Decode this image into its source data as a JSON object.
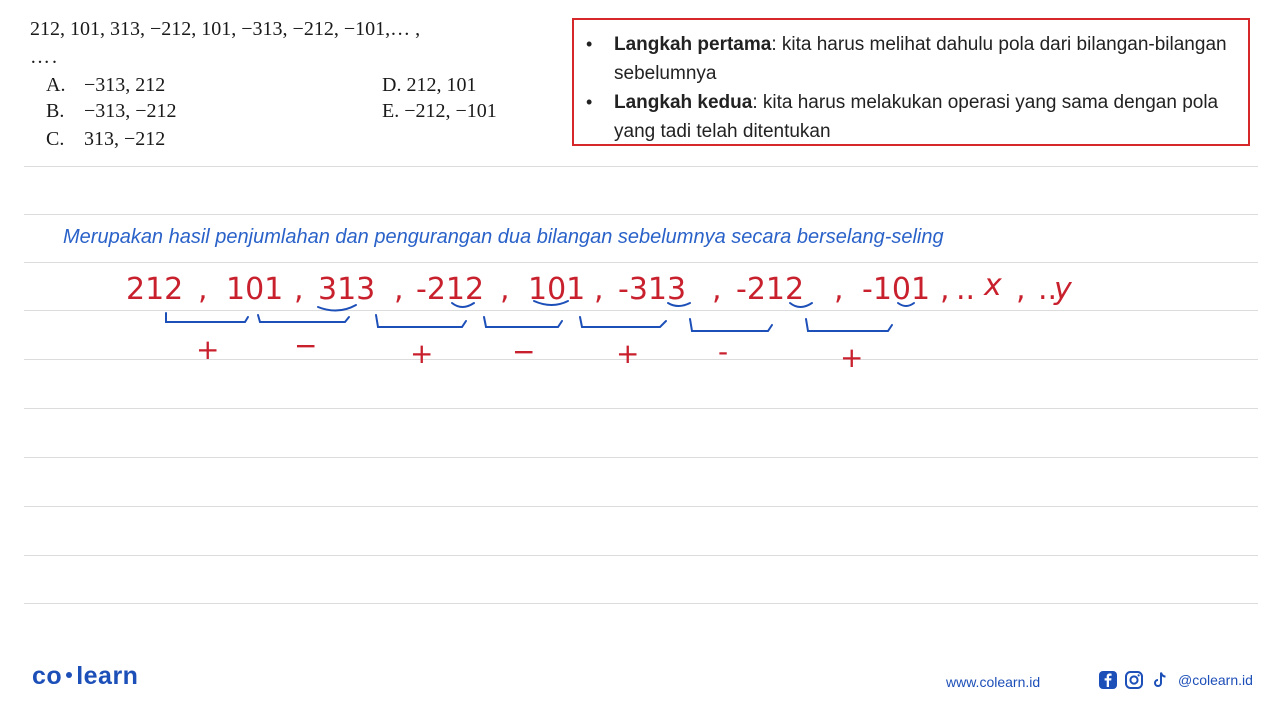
{
  "question": {
    "sequence": "212, 101, 313, −212,  101,  −313,  −212,  −101,… ,",
    "blank": "….",
    "options": [
      {
        "label": "A.",
        "value": "−313,   212"
      },
      {
        "label": "B.",
        "value": "−313, −212"
      },
      {
        "label": "C.",
        "value": "313, −212"
      },
      {
        "label": "D.",
        "value": "212,   101"
      },
      {
        "label": "E.",
        "value": "−212, −101"
      }
    ]
  },
  "hints": [
    {
      "title": "Langkah pertama",
      "text": ": kita harus melihat dahulu pola dari bilangan-bilangan sebelumnya"
    },
    {
      "title": "Langkah kedua",
      "text": ": kita harus melakukan operasi yang sama dengan pola yang tadi telah ditentukan"
    }
  ],
  "explanation": "Merupakan hasil penjumlahan dan pengurangan dua bilangan sebelumnya secara berselang-seling",
  "handwriting": {
    "numbers": [
      "212",
      "101",
      "313",
      "-212",
      "101",
      "-313",
      "-212",
      "-101",
      "x",
      "y"
    ],
    "operations": [
      "+",
      "−",
      "+",
      "−",
      "+",
      "-",
      "+"
    ],
    "ink_color": "#c8202d",
    "secondary_ink": "#1d4fb8"
  },
  "footer": {
    "brand": "co learn",
    "brand_left": "co",
    "brand_right": "learn",
    "url": "www.colearn.id",
    "handle": "@colearn.id"
  }
}
